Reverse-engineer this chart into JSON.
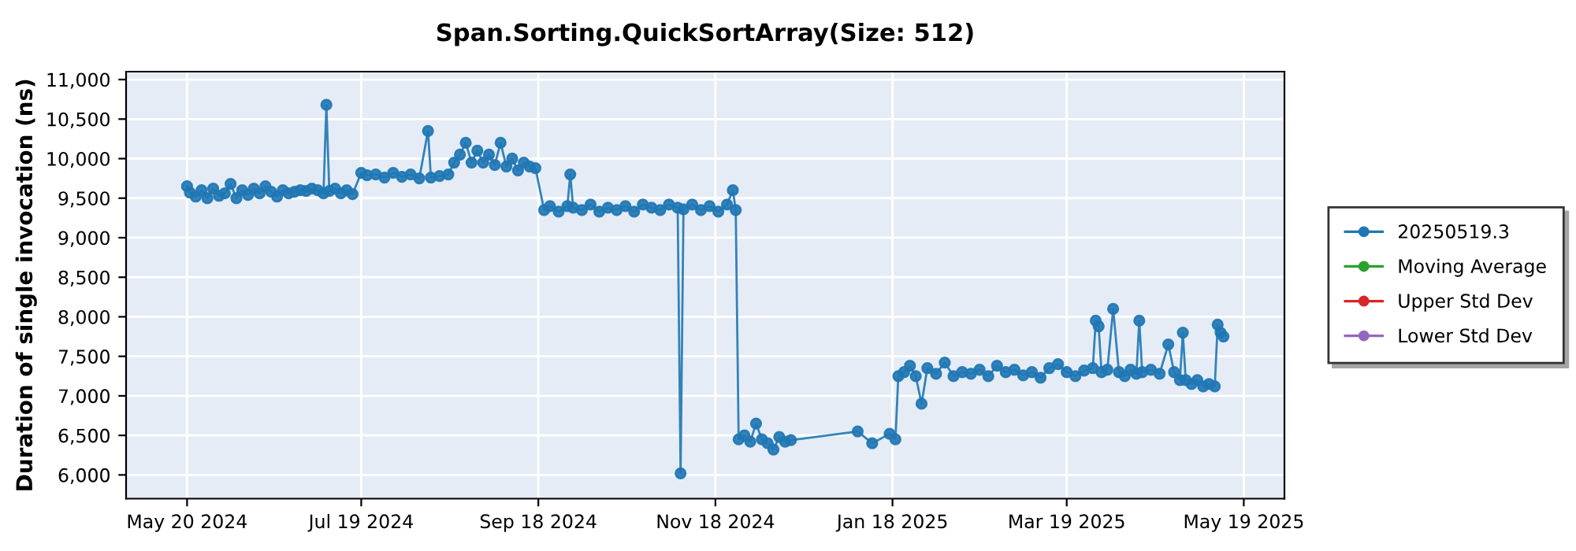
{
  "chart_data": {
    "type": "line",
    "title": "Span.Sorting.QuickSortArray(Size: 512)",
    "ylabel": "Duration of single invocation (ns)",
    "x": [
      "2024-05-20",
      "2024-05-21",
      "2024-05-23",
      "2024-05-25",
      "2024-05-27",
      "2024-05-29",
      "2024-05-31",
      "2024-06-02",
      "2024-06-04",
      "2024-06-06",
      "2024-06-08",
      "2024-06-10",
      "2024-06-12",
      "2024-06-14",
      "2024-06-16",
      "2024-06-18",
      "2024-06-20",
      "2024-06-22",
      "2024-06-24",
      "2024-06-26",
      "2024-06-28",
      "2024-06-30",
      "2024-07-02",
      "2024-07-04",
      "2024-07-06",
      "2024-07-07",
      "2024-07-08",
      "2024-07-10",
      "2024-07-12",
      "2024-07-14",
      "2024-07-16",
      "2024-07-19",
      "2024-07-21",
      "2024-07-24",
      "2024-07-27",
      "2024-07-30",
      "2024-08-02",
      "2024-08-05",
      "2024-08-08",
      "2024-08-11",
      "2024-08-12",
      "2024-08-15",
      "2024-08-18",
      "2024-08-20",
      "2024-08-22",
      "2024-08-24",
      "2024-08-26",
      "2024-08-28",
      "2024-08-30",
      "2024-09-01",
      "2024-09-03",
      "2024-09-05",
      "2024-09-07",
      "2024-09-09",
      "2024-09-11",
      "2024-09-13",
      "2024-09-15",
      "2024-09-17",
      "2024-09-20",
      "2024-09-22",
      "2024-09-25",
      "2024-09-28",
      "2024-09-29",
      "2024-09-30",
      "2024-10-03",
      "2024-10-06",
      "2024-10-09",
      "2024-10-12",
      "2024-10-15",
      "2024-10-18",
      "2024-10-21",
      "2024-10-24",
      "2024-10-27",
      "2024-10-30",
      "2024-11-02",
      "2024-11-05",
      "2024-11-06",
      "2024-11-07",
      "2024-11-10",
      "2024-11-13",
      "2024-11-16",
      "2024-11-19",
      "2024-11-22",
      "2024-11-24",
      "2024-11-25",
      "2024-11-26",
      "2024-11-28",
      "2024-11-30",
      "2024-12-02",
      "2024-12-04",
      "2024-12-06",
      "2024-12-08",
      "2024-12-10",
      "2024-12-12",
      "2024-12-14",
      "2025-01-06",
      "2025-01-11",
      "2025-01-17",
      "2025-01-19",
      "2025-01-20",
      "2025-01-22",
      "2025-01-24",
      "2025-01-26",
      "2025-01-28",
      "2025-01-30",
      "2025-02-02",
      "2025-02-05",
      "2025-02-08",
      "2025-02-11",
      "2025-02-14",
      "2025-02-17",
      "2025-02-20",
      "2025-02-23",
      "2025-02-26",
      "2025-03-01",
      "2025-03-04",
      "2025-03-07",
      "2025-03-10",
      "2025-03-13",
      "2025-03-16",
      "2025-03-19",
      "2025-03-22",
      "2025-03-25",
      "2025-03-28",
      "2025-03-29",
      "2025-03-30",
      "2025-03-31",
      "2025-04-02",
      "2025-04-04",
      "2025-04-06",
      "2025-04-08",
      "2025-04-10",
      "2025-04-12",
      "2025-04-13",
      "2025-04-14",
      "2025-04-17",
      "2025-04-20",
      "2025-04-23",
      "2025-04-25",
      "2025-04-27",
      "2025-04-28",
      "2025-04-29",
      "2025-05-01",
      "2025-05-03",
      "2025-05-05",
      "2025-05-07",
      "2025-05-09",
      "2025-05-10",
      "2025-05-11",
      "2025-05-12"
    ],
    "series": [
      {
        "name": "20250519.3",
        "color": "#1f77b4",
        "values": [
          9650,
          9570,
          9520,
          9600,
          9500,
          9620,
          9530,
          9560,
          9680,
          9500,
          9600,
          9540,
          9620,
          9560,
          9650,
          9580,
          9520,
          9600,
          9560,
          9580,
          9600,
          9590,
          9620,
          9600,
          9560,
          10680,
          9590,
          9620,
          9560,
          9600,
          9550,
          9820,
          9790,
          9800,
          9760,
          9820,
          9770,
          9800,
          9750,
          10350,
          9760,
          9780,
          9800,
          9950,
          10050,
          10200,
          9950,
          10100,
          9950,
          10050,
          9920,
          10200,
          9900,
          10000,
          9850,
          9950,
          9900,
          9880,
          9350,
          9400,
          9330,
          9400,
          9800,
          9380,
          9350,
          9420,
          9330,
          9380,
          9350,
          9400,
          9330,
          9420,
          9380,
          9350,
          9420,
          9380,
          6020,
          9360,
          9420,
          9350,
          9400,
          9330,
          9420,
          9600,
          9350,
          6450,
          6500,
          6420,
          6650,
          6450,
          6400,
          6320,
          6480,
          6420,
          6440,
          6550,
          6400,
          6520,
          6450,
          7250,
          7300,
          7380,
          7250,
          6900,
          7350,
          7280,
          7420,
          7250,
          7300,
          7280,
          7330,
          7250,
          7380,
          7300,
          7330,
          7260,
          7300,
          7230,
          7350,
          7400,
          7300,
          7250,
          7320,
          7350,
          7950,
          7880,
          7300,
          7330,
          8100,
          7300,
          7250,
          7330,
          7280,
          7950,
          7300,
          7330,
          7280,
          7650,
          7300,
          7200,
          7800,
          7200,
          7150,
          7200,
          7120,
          7150,
          7120,
          7900,
          7800,
          7750
        ]
      },
      {
        "name": "Moving Average",
        "color": "#2ca02c",
        "values": [
          null,
          null,
          null,
          null,
          null,
          null,
          null,
          null,
          null,
          null,
          null,
          null,
          null,
          null,
          null,
          null,
          null,
          null,
          null,
          null,
          null,
          null,
          null,
          null,
          null,
          null,
          null,
          null,
          null,
          null,
          null,
          null,
          null,
          null,
          null,
          null,
          null,
          null,
          null,
          null,
          null,
          null,
          null,
          null,
          null,
          null,
          null,
          null,
          null,
          null,
          null,
          null,
          null,
          null,
          null,
          null,
          null,
          null,
          null,
          null,
          null,
          null,
          null,
          null,
          null,
          null,
          null,
          null,
          null,
          null,
          null,
          null,
          null,
          null,
          null,
          null,
          null,
          null,
          null,
          null,
          null,
          null,
          null,
          null,
          null,
          null,
          null,
          null,
          null,
          null,
          null,
          null,
          null,
          null,
          null,
          null,
          null,
          null,
          null,
          null,
          null,
          null,
          null,
          null,
          null,
          null,
          null,
          null,
          null,
          null,
          null,
          null,
          null,
          null,
          null,
          null,
          null,
          null,
          null,
          null,
          null,
          null,
          null,
          null,
          null,
          null,
          null,
          null,
          null,
          null,
          null,
          null,
          null,
          null,
          null,
          null,
          null,
          null,
          null,
          null,
          null,
          null,
          null,
          null,
          null,
          null,
          null,
          null,
          null,
          null
        ]
      },
      {
        "name": "Upper Std Dev",
        "color": "#d62728",
        "values": [
          null,
          null,
          null,
          null,
          null,
          null,
          null,
          null,
          null,
          null,
          null,
          null,
          null,
          null,
          null,
          null,
          null,
          null,
          null,
          null,
          null,
          null,
          null,
          null,
          null,
          null,
          null,
          null,
          null,
          null,
          null,
          null,
          null,
          null,
          null,
          null,
          null,
          null,
          null,
          null,
          null,
          null,
          null,
          null,
          null,
          null,
          null,
          null,
          null,
          null,
          null,
          null,
          null,
          null,
          null,
          null,
          null,
          null,
          null,
          null,
          null,
          null,
          null,
          null,
          null,
          null,
          null,
          null,
          null,
          null,
          null,
          null,
          null,
          null,
          null,
          null,
          null,
          null,
          null,
          null,
          null,
          null,
          null,
          null,
          null,
          null,
          null,
          null,
          null,
          null,
          null,
          null,
          null,
          null,
          null,
          null,
          null,
          null,
          null,
          null,
          null,
          null,
          null,
          null,
          null,
          null,
          null,
          null,
          null,
          null,
          null,
          null,
          null,
          null,
          null,
          null,
          null,
          null,
          null,
          null,
          null,
          null,
          null,
          null,
          null,
          null,
          null,
          null,
          null,
          null,
          null,
          null,
          null,
          null,
          null,
          null,
          null,
          null,
          null,
          null,
          null,
          null,
          null,
          null,
          null,
          null,
          null,
          null,
          null,
          null
        ]
      },
      {
        "name": "Lower Std Dev",
        "color": "#9467bd",
        "values": [
          null,
          null,
          null,
          null,
          null,
          null,
          null,
          null,
          null,
          null,
          null,
          null,
          null,
          null,
          null,
          null,
          null,
          null,
          null,
          null,
          null,
          null,
          null,
          null,
          null,
          null,
          null,
          null,
          null,
          null,
          null,
          null,
          null,
          null,
          null,
          null,
          null,
          null,
          null,
          null,
          null,
          null,
          null,
          null,
          null,
          null,
          null,
          null,
          null,
          null,
          null,
          null,
          null,
          null,
          null,
          null,
          null,
          null,
          null,
          null,
          null,
          null,
          null,
          null,
          null,
          null,
          null,
          null,
          null,
          null,
          null,
          null,
          null,
          null,
          null,
          null,
          null,
          null,
          null,
          null,
          null,
          null,
          null,
          null,
          null,
          null,
          null,
          null,
          null,
          null,
          null,
          null,
          null,
          null,
          null,
          null,
          null,
          null,
          null,
          null,
          null,
          null,
          null,
          null,
          null,
          null,
          null,
          null,
          null,
          null,
          null,
          null,
          null,
          null,
          null,
          null,
          null,
          null,
          null,
          null,
          null,
          null,
          null,
          null,
          null,
          null,
          null,
          null,
          null,
          null,
          null,
          null,
          null,
          null,
          null,
          null,
          null,
          null,
          null,
          null,
          null,
          null,
          null,
          null,
          null,
          null,
          null,
          null,
          null,
          null
        ]
      }
    ],
    "xlim": [
      "2024-04-29",
      "2025-06-02"
    ],
    "xticks": [
      {
        "value": "2024-05-20",
        "label": "May 20 2024"
      },
      {
        "value": "2024-07-19",
        "label": "Jul 19 2024"
      },
      {
        "value": "2024-09-18",
        "label": "Sep 18 2024"
      },
      {
        "value": "2024-11-18",
        "label": "Nov 18 2024"
      },
      {
        "value": "2025-01-18",
        "label": "Jan 18 2025"
      },
      {
        "value": "2025-03-19",
        "label": "Mar 19 2025"
      },
      {
        "value": "2025-05-19",
        "label": "May 19 2025"
      }
    ],
    "ylim": [
      5700,
      11100
    ],
    "yticks": [
      {
        "value": 6000,
        "label": "6,000"
      },
      {
        "value": 6500,
        "label": "6,500"
      },
      {
        "value": 7000,
        "label": "7,000"
      },
      {
        "value": 7500,
        "label": "7,500"
      },
      {
        "value": 8000,
        "label": "8,000"
      },
      {
        "value": 8500,
        "label": "8,500"
      },
      {
        "value": 9000,
        "label": "9,000"
      },
      {
        "value": 9500,
        "label": "9,500"
      },
      {
        "value": 10000,
        "label": "10,000"
      },
      {
        "value": 10500,
        "label": "10,500"
      },
      {
        "value": 11000,
        "label": "11,000"
      }
    ],
    "grid": true,
    "legend": "right",
    "marker": "circle",
    "line_style": "solid"
  }
}
